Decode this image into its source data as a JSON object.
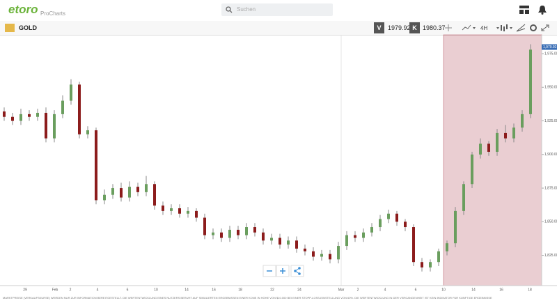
{
  "header": {
    "logo": "etoro",
    "app": "ProCharts",
    "search_placeholder": "Suchen"
  },
  "toolbar": {
    "instrument": "GOLD",
    "bid_label": "V",
    "bid": "1979.92",
    "ask_label": "K",
    "ask": "1980.37",
    "timeframe": "4H"
  },
  "disclaimer": "MARKTPREISE (VERKAUFSKURSE) WERDEN NUR ZUR INFORMATION BEREITGESTELLT. DIE WERTENTWICKLUNG EINES NUTZERS BERUHT AUF SIMULIERTEN ERGEBNISSEN EINER KONE IN HÖHE VON $10.000 BEI EINER STOPP-LOSS-EINSTELLUNG VON 60%. DIE WERTENTWICKLUNG IN DER VERGANGENHEIT IST KEIN INDIKATOR FÜR KÜNFTIGE ERGEBNISSE",
  "chart_data": {
    "type": "candlestick",
    "up_color": "#6a9e5e",
    "down_color": "#8c1c1c",
    "x_labels": [
      "29",
      "Feb",
      "2",
      "4",
      "6",
      "10",
      "14",
      "16",
      "18",
      "22",
      "24",
      "Mar",
      "2",
      "4",
      "6",
      "10",
      "14",
      "16",
      "18"
    ],
    "open": [
      1932,
      1928,
      1925,
      1930,
      1928,
      1931,
      1912,
      1930,
      1940,
      1952,
      1915,
      1918,
      1866,
      1870,
      1875,
      1868,
      1876,
      1872,
      1878,
      1862,
      1858,
      1860,
      1856,
      1858,
      1853,
      1840,
      1842,
      1838,
      1844,
      1840,
      1846,
      1842,
      1836,
      1838,
      1833,
      1836,
      1830,
      1828,
      1824,
      1826,
      1822,
      1832,
      1840,
      1838,
      1842,
      1846,
      1852,
      1856,
      1850,
      1846,
      1820,
      1816,
      1820,
      1828,
      1834,
      1858,
      1878,
      1900,
      1908,
      1902,
      1916,
      1912,
      1920,
      1930
    ],
    "high": [
      1935,
      1931,
      1934,
      1933,
      1934,
      1935,
      1933,
      1944,
      1956,
      1954,
      1921,
      1920,
      1874,
      1878,
      1879,
      1880,
      1879,
      1884,
      1880,
      1865,
      1863,
      1863,
      1861,
      1860,
      1856,
      1845,
      1845,
      1847,
      1847,
      1849,
      1849,
      1845,
      1841,
      1841,
      1839,
      1839,
      1833,
      1831,
      1829,
      1829,
      1835,
      1843,
      1843,
      1845,
      1849,
      1855,
      1859,
      1858,
      1852,
      1848,
      1823,
      1822,
      1830,
      1836,
      1861,
      1880,
      1902,
      1912,
      1910,
      1919,
      1922,
      1923,
      1933,
      1982
    ],
    "low": [
      1925,
      1922,
      1922,
      1925,
      1925,
      1909,
      1909,
      1927,
      1937,
      1912,
      1912,
      1863,
      1863,
      1867,
      1865,
      1865,
      1869,
      1869,
      1859,
      1855,
      1855,
      1853,
      1853,
      1850,
      1837,
      1837,
      1835,
      1835,
      1837,
      1837,
      1839,
      1833,
      1833,
      1830,
      1830,
      1827,
      1825,
      1821,
      1821,
      1819,
      1819,
      1829,
      1835,
      1835,
      1839,
      1843,
      1849,
      1847,
      1843,
      1817,
      1813,
      1813,
      1817,
      1825,
      1831,
      1855,
      1875,
      1897,
      1899,
      1899,
      1909,
      1909,
      1917,
      1927
    ],
    "close": [
      1928,
      1925,
      1930,
      1928,
      1931,
      1912,
      1930,
      1940,
      1952,
      1915,
      1918,
      1866,
      1870,
      1875,
      1868,
      1876,
      1872,
      1878,
      1862,
      1858,
      1860,
      1856,
      1858,
      1853,
      1840,
      1842,
      1838,
      1844,
      1840,
      1846,
      1842,
      1836,
      1838,
      1833,
      1836,
      1830,
      1828,
      1824,
      1826,
      1822,
      1832,
      1840,
      1838,
      1842,
      1846,
      1852,
      1856,
      1850,
      1846,
      1820,
      1816,
      1820,
      1828,
      1834,
      1858,
      1878,
      1900,
      1908,
      1902,
      1916,
      1912,
      1920,
      1930,
      1978
    ],
    "ylim": [
      1802.5,
      1989
    ],
    "yticks": [
      {
        "value": 1825,
        "label": "1,825.00"
      },
      {
        "value": 1850,
        "label": "1,850.00"
      },
      {
        "value": 1875,
        "label": "1,875.00"
      },
      {
        "value": 1900,
        "label": "1,900.00"
      },
      {
        "value": 1925,
        "label": "1,925.00"
      },
      {
        "value": 1950,
        "label": "1,950.00"
      },
      {
        "value": 1975,
        "label": "1,975.00"
      }
    ],
    "last_price": {
      "value": 1979.92,
      "label": "1,979.92"
    }
  }
}
